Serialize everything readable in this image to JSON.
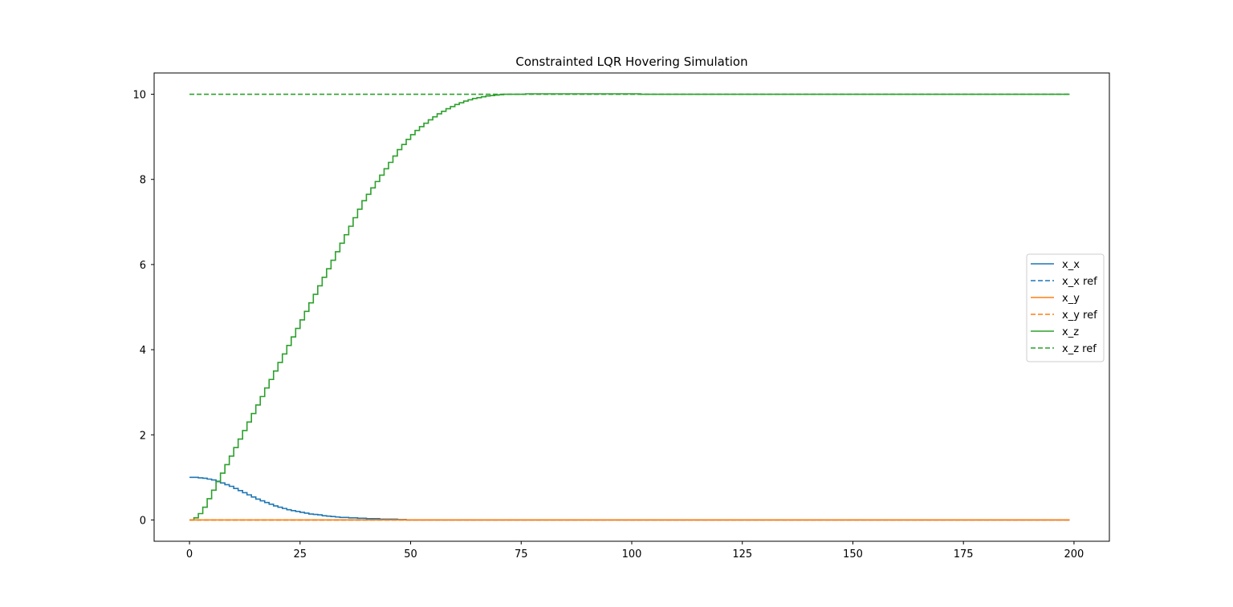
{
  "chart_data": {
    "type": "line",
    "title": "Constrainted LQR Hovering Simulation",
    "xlabel": "",
    "ylabel": "",
    "xlim": [
      -8,
      208
    ],
    "ylim": [
      -0.5,
      10.5
    ],
    "xticks": [
      0,
      25,
      50,
      75,
      100,
      125,
      150,
      175,
      200
    ],
    "xtick_labels": [
      "0",
      "25",
      "50",
      "75",
      "100",
      "125",
      "150",
      "175",
      "200"
    ],
    "yticks": [
      0,
      2,
      4,
      6,
      8,
      10
    ],
    "ytick_labels": [
      "0",
      "2",
      "4",
      "6",
      "8",
      "10"
    ],
    "grid": false,
    "legend_position": "center-right",
    "x_start": 0,
    "x_end": 199,
    "drawstyle": "steps-post",
    "series": [
      {
        "name": "x_x",
        "color": "#1f77b4",
        "dashed": false,
        "values": [
          1.0,
          1.0,
          0.99,
          0.98,
          0.96,
          0.94,
          0.91,
          0.87,
          0.83,
          0.79,
          0.74,
          0.69,
          0.64,
          0.59,
          0.54,
          0.49,
          0.45,
          0.41,
          0.37,
          0.33,
          0.3,
          0.27,
          0.24,
          0.22,
          0.2,
          0.18,
          0.16,
          0.14,
          0.13,
          0.12,
          0.1,
          0.09,
          0.08,
          0.07,
          0.06,
          0.06,
          0.05,
          0.05,
          0.04,
          0.04,
          0.03,
          0.03,
          0.03,
          0.02,
          0.02,
          0.02,
          0.02,
          0.01,
          0.01,
          0.0
        ]
      },
      {
        "name": "x_x ref",
        "color": "#1f77b4",
        "dashed": true,
        "values": [
          0
        ]
      },
      {
        "name": "x_y",
        "color": "#ff7f0e",
        "dashed": false,
        "values": [
          0
        ]
      },
      {
        "name": "x_y ref",
        "color": "#ff7f0e",
        "dashed": true,
        "values": [
          0
        ]
      },
      {
        "name": "x_z",
        "color": "#2ca02c",
        "dashed": false,
        "values": [
          0.0,
          0.05,
          0.15,
          0.3,
          0.5,
          0.7,
          0.9,
          1.1,
          1.3,
          1.5,
          1.7,
          1.9,
          2.1,
          2.3,
          2.5,
          2.7,
          2.9,
          3.1,
          3.3,
          3.5,
          3.7,
          3.9,
          4.1,
          4.3,
          4.5,
          4.7,
          4.9,
          5.1,
          5.3,
          5.5,
          5.7,
          5.9,
          6.1,
          6.3,
          6.5,
          6.7,
          6.9,
          7.1,
          7.3,
          7.5,
          7.65,
          7.8,
          7.95,
          8.1,
          8.25,
          8.4,
          8.55,
          8.7,
          8.82,
          8.94,
          9.05,
          9.15,
          9.24,
          9.32,
          9.4,
          9.47,
          9.54,
          9.6,
          9.66,
          9.71,
          9.76,
          9.8,
          9.84,
          9.87,
          9.9,
          9.92,
          9.94,
          9.96,
          9.97,
          9.98,
          9.99,
          10.0,
          10.0,
          10.0,
          10.0,
          10.0,
          10.01,
          10.01,
          10.01,
          10.01,
          10.01,
          10.01,
          10.01,
          10.01,
          10.01,
          10.01,
          10.01,
          10.01,
          10.01,
          10.01,
          10.01,
          10.01,
          10.01,
          10.01,
          10.01,
          10.01,
          10.01,
          10.01,
          10.01,
          10.01,
          10.01,
          10.01,
          10.0
        ]
      },
      {
        "name": "x_z ref",
        "color": "#2ca02c",
        "dashed": true,
        "values": [
          10
        ]
      }
    ]
  }
}
